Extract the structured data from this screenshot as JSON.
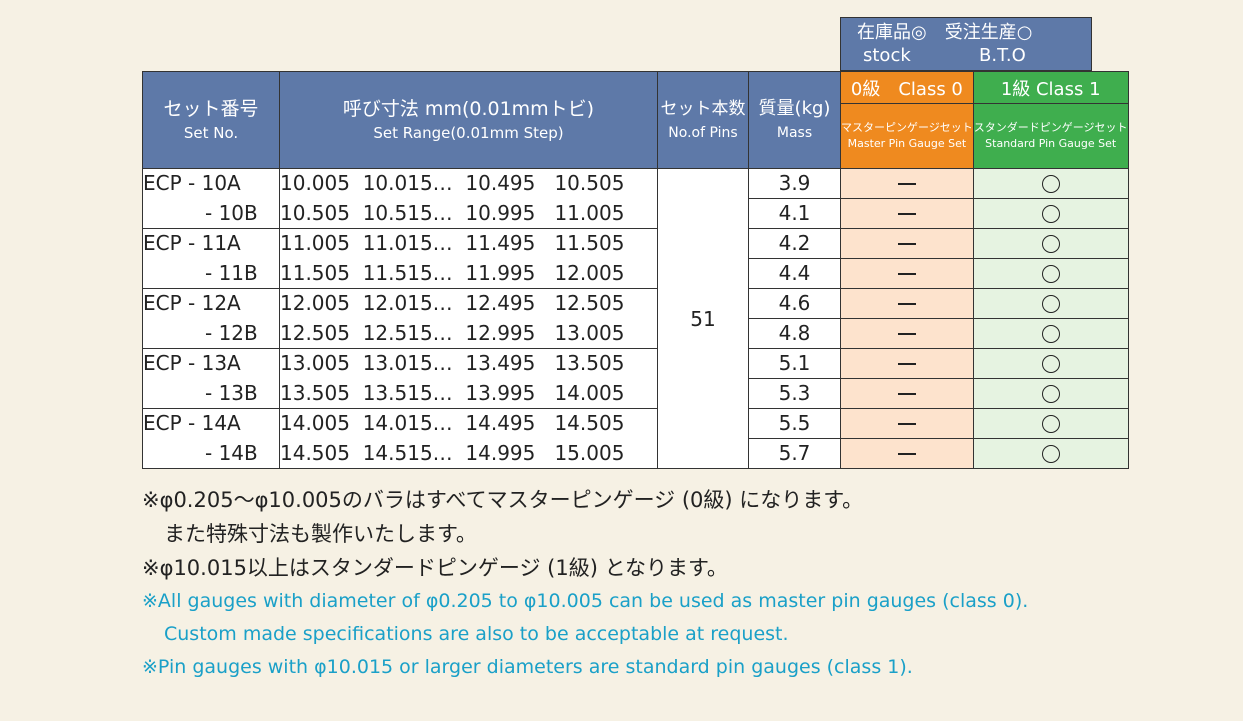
{
  "stock_header": {
    "line1": "在庫品◎　受注生産○",
    "stock_en": "stock",
    "bto_en": "B.T.O"
  },
  "headers": {
    "set_no_jp": "セット番号",
    "set_no_en": "Set No.",
    "range_jp": "呼び寸法 mm(0.01mmトビ)",
    "range_en": "Set Range(0.01mm Step)",
    "pins_jp": "セット本数",
    "pins_en": "No.of Pins",
    "mass_jp": "質量(kg)",
    "mass_en": "Mass",
    "class0": "0級　Class 0",
    "class1": "1級 Class 1",
    "class0_sub_jp": "マスターピンゲージセット",
    "class0_sub_en": "Master Pin Gauge Set",
    "class1_sub_jp": "スタンダードピンゲージセット",
    "class1_sub_en": "Standard Pin Gauge Set"
  },
  "pins_count": "51",
  "rows": [
    {
      "set": "ECP - 10A",
      "range": "10.005  10.015…  10.495   10.505",
      "mass": "3.9",
      "class0": "dash",
      "class1": "circle"
    },
    {
      "set": "- 10B",
      "range": "10.505  10.515…  10.995   11.005",
      "mass": "4.1",
      "class0": "dash",
      "class1": "circle"
    },
    {
      "set": "ECP - 11A",
      "range": "11.005  11.015…  11.495   11.505",
      "mass": "4.2",
      "class0": "dash",
      "class1": "circle"
    },
    {
      "set": "- 11B",
      "range": "11.505  11.515…  11.995   12.005",
      "mass": "4.4",
      "class0": "dash",
      "class1": "circle"
    },
    {
      "set": "ECP - 12A",
      "range": "12.005  12.015…  12.495   12.505",
      "mass": "4.6",
      "class0": "dash",
      "class1": "circle"
    },
    {
      "set": "- 12B",
      "range": "12.505  12.515…  12.995   13.005",
      "mass": "4.8",
      "class0": "dash",
      "class1": "circle"
    },
    {
      "set": "ECP - 13A",
      "range": "13.005  13.015…  13.495   13.505",
      "mass": "5.1",
      "class0": "dash",
      "class1": "circle"
    },
    {
      "set": "- 13B",
      "range": "13.505  13.515…  13.995   14.005",
      "mass": "5.3",
      "class0": "dash",
      "class1": "circle"
    },
    {
      "set": "ECP - 14A",
      "range": "14.005  14.015…  14.495   14.505",
      "mass": "5.5",
      "class0": "dash",
      "class1": "circle"
    },
    {
      "set": "- 14B",
      "range": "14.505  14.515…  14.995   15.005",
      "mass": "5.7",
      "class0": "dash",
      "class1": "circle"
    }
  ],
  "notes": {
    "jp1": "※φ0.205～φ10.005のバラはすべてマスターピンゲージ (0級) になります。",
    "jp2": "また特殊寸法も製作いたします。",
    "jp3": "※φ10.015以上はスタンダードピンゲージ (1級) となります。",
    "en1": "※All gauges with diameter of φ0.205 to φ10.005 can be used as master pin gauges (class 0).",
    "en2": "Custom made specifications are also to be acceptable at request.",
    "en3": "※Pin gauges with φ10.015 or larger diameters are standard pin gauges (class 1)."
  },
  "colors": {
    "header_blue": "#5e79a8",
    "class0_orange": "#ef8a1f",
    "class1_green": "#3fae4e",
    "class0_cell": "#fde3cd",
    "class1_cell": "#e6f3e1",
    "note_blue": "#1aa0c8",
    "background": "#f6f1e4"
  }
}
